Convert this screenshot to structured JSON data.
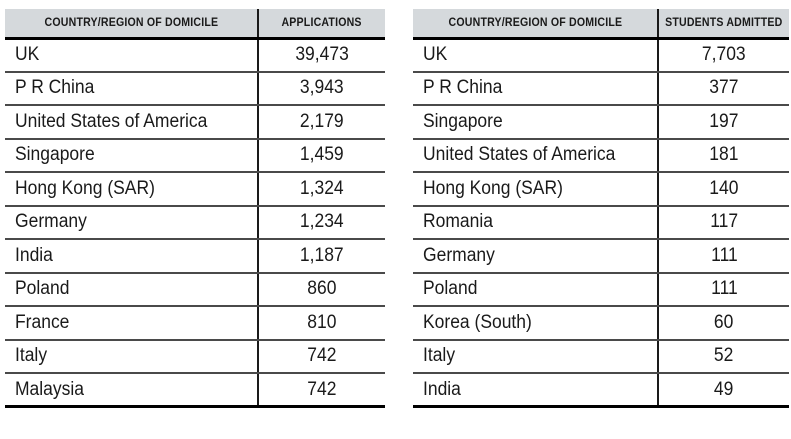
{
  "colors": {
    "header_bg": "#d5d9dc",
    "divider": "#1a1a1a",
    "row_line": "#4a4a4a",
    "strong_line": "#000000",
    "text": "#1a1a1a"
  },
  "tables": [
    {
      "name": "applications",
      "headers": {
        "country": "COUNTRY/REGION OF DOMICILE",
        "value": "APPLICATIONS"
      },
      "rows": [
        {
          "country": "UK",
          "value": "39,473"
        },
        {
          "country": "P R China",
          "value": "3,943"
        },
        {
          "country": "United States of America",
          "value": "2,179"
        },
        {
          "country": "Singapore",
          "value": "1,459"
        },
        {
          "country": "Hong Kong (SAR)",
          "value": "1,324"
        },
        {
          "country": "Germany",
          "value": "1,234"
        },
        {
          "country": "India",
          "value": "1,187"
        },
        {
          "country": "Poland",
          "value": "860"
        },
        {
          "country": "France",
          "value": "810"
        },
        {
          "country": "Italy",
          "value": "742"
        },
        {
          "country": "Malaysia",
          "value": "742"
        }
      ]
    },
    {
      "name": "students_admitted",
      "headers": {
        "country": "COUNTRY/REGION OF DOMICILE",
        "value": "STUDENTS ADMITTED"
      },
      "rows": [
        {
          "country": "UK",
          "value": "7,703"
        },
        {
          "country": "P R China",
          "value": "377"
        },
        {
          "country": "Singapore",
          "value": "197"
        },
        {
          "country": "United States of America",
          "value": "181"
        },
        {
          "country": "Hong Kong (SAR)",
          "value": "140"
        },
        {
          "country": "Romania",
          "value": "117"
        },
        {
          "country": "Germany",
          "value": "111"
        },
        {
          "country": "Poland",
          "value": "111"
        },
        {
          "country": "Korea (South)",
          "value": "60"
        },
        {
          "country": "Italy",
          "value": "52"
        },
        {
          "country": "India",
          "value": "49"
        }
      ]
    }
  ]
}
